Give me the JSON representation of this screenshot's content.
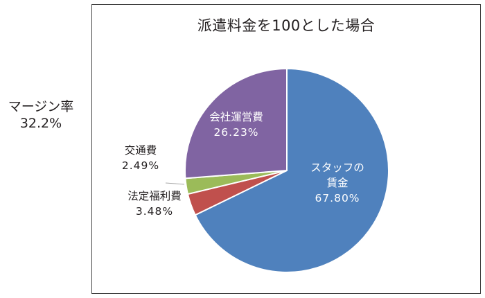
{
  "side_note": {
    "label": "マージン率",
    "value": "32.2%"
  },
  "chart_data": {
    "type": "pie",
    "title": "派遣料金を100とした場合",
    "slices": [
      {
        "name": "スタッフの賃金",
        "label_lines": [
          "スタッフの",
          "賃金"
        ],
        "value": 67.8,
        "value_label": "67.80%",
        "color": "#4f81bd",
        "label_color": "#ffffff"
      },
      {
        "name": "法定福利費",
        "label_lines": [
          "法定福利費"
        ],
        "value": 3.48,
        "value_label": "3.48%",
        "color": "#c0504d",
        "label_color": "#231f20"
      },
      {
        "name": "交通費",
        "label_lines": [
          "交通費"
        ],
        "value": 2.49,
        "value_label": "2.49%",
        "color": "#9bbb59",
        "label_color": "#231f20"
      },
      {
        "name": "会社運営費",
        "label_lines": [
          "会社運営費"
        ],
        "value": 26.23,
        "value_label": "26.23%",
        "color": "#8064a2",
        "label_color": "#ffffff"
      }
    ]
  }
}
